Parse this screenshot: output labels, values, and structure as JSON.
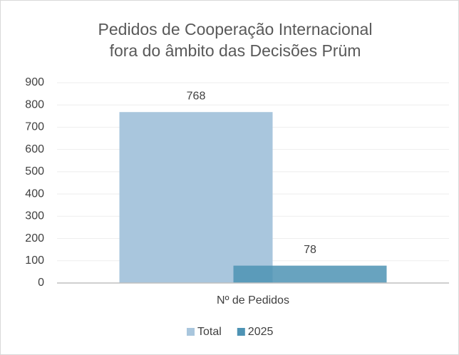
{
  "chart_data": {
    "type": "bar",
    "title": [
      "Pedidos de Cooperação Internacional",
      "fora do âmbito das Decisões Prüm"
    ],
    "categories": [
      "Nº de Pedidos"
    ],
    "series": [
      {
        "name": "Total",
        "color": "#a9c6dd",
        "values": [
          768
        ]
      },
      {
        "name": "2025",
        "color": "#4e93b4",
        "values": [
          78
        ]
      }
    ],
    "ylim": [
      0,
      900
    ],
    "yticks": [
      0,
      100,
      200,
      300,
      400,
      500,
      600,
      700,
      800,
      900
    ],
    "grid": true,
    "legend": "bottom"
  }
}
